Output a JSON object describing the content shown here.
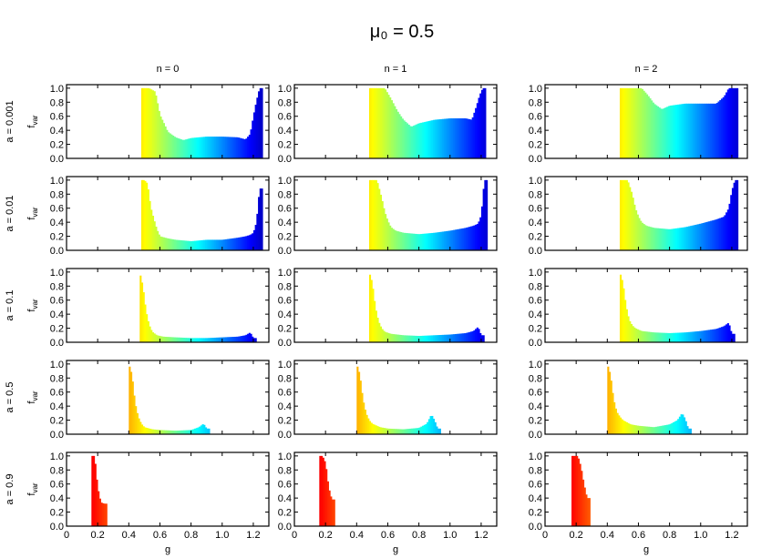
{
  "chart_data": {
    "type": "bar",
    "title": "μ₀ = 0.5",
    "xlabel": "g",
    "ylabel": "f_var",
    "xlim": [
      0,
      1.3
    ],
    "ylim": [
      0,
      1.05
    ],
    "x_ticks": [
      "0",
      "0.2",
      "0.4",
      "0.6",
      "0.8",
      "1.0",
      "1.2"
    ],
    "y_ticks": [
      "0.0",
      "0.2",
      "0.4",
      "0.6",
      "0.8",
      "1.0"
    ],
    "columns": [
      "n = 0",
      "n = 1",
      "n = 2"
    ],
    "rows": [
      "a = 0.001",
      "a = 0.01",
      "a = 0.1",
      "a = 0.5",
      "a = 0.9"
    ],
    "colormap": "jet",
    "panels": [
      {
        "row": 0,
        "col": 0,
        "x": [
          0.48,
          0.53,
          0.57,
          0.6,
          0.63,
          0.65,
          0.7,
          0.75,
          0.8,
          0.9,
          1.0,
          1.1,
          1.15,
          1.18,
          1.2,
          1.22,
          1.24
        ],
        "y": [
          1.0,
          1.0,
          0.95,
          0.62,
          0.48,
          0.38,
          0.3,
          0.26,
          0.29,
          0.31,
          0.31,
          0.3,
          0.27,
          0.35,
          0.6,
          0.82,
          1.0
        ]
      },
      {
        "row": 0,
        "col": 1,
        "x": [
          0.48,
          0.53,
          0.58,
          0.62,
          0.66,
          0.7,
          0.75,
          0.8,
          0.9,
          1.0,
          1.1,
          1.14,
          1.17,
          1.19,
          1.21
        ],
        "y": [
          1.0,
          1.0,
          1.0,
          0.85,
          0.68,
          0.55,
          0.45,
          0.5,
          0.55,
          0.57,
          0.57,
          0.55,
          0.75,
          0.9,
          1.0
        ]
      },
      {
        "row": 0,
        "col": 2,
        "x": [
          0.48,
          0.53,
          0.58,
          0.62,
          0.66,
          0.7,
          0.75,
          0.8,
          0.9,
          1.0,
          1.1,
          1.15,
          1.18,
          1.2,
          1.22
        ],
        "y": [
          1.0,
          1.0,
          1.0,
          1.0,
          0.9,
          0.78,
          0.7,
          0.75,
          0.78,
          0.78,
          0.78,
          0.88,
          1.0,
          1.0,
          1.0
        ]
      },
      {
        "row": 1,
        "col": 0,
        "x": [
          0.48,
          0.5,
          0.52,
          0.54,
          0.56,
          0.58,
          0.6,
          0.65,
          0.7,
          0.8,
          0.9,
          1.0,
          1.1,
          1.15,
          1.18,
          1.2,
          1.22,
          1.24
        ],
        "y": [
          1.0,
          1.0,
          0.95,
          0.62,
          0.45,
          0.3,
          0.2,
          0.17,
          0.15,
          0.13,
          0.15,
          0.15,
          0.18,
          0.2,
          0.22,
          0.25,
          0.4,
          0.88
        ]
      },
      {
        "row": 1,
        "col": 1,
        "x": [
          0.48,
          0.5,
          0.53,
          0.56,
          0.58,
          0.6,
          0.62,
          0.65,
          0.7,
          0.8,
          0.9,
          1.0,
          1.1,
          1.15,
          1.18,
          1.2,
          1.22
        ],
        "y": [
          1.0,
          1.0,
          1.0,
          0.75,
          0.55,
          0.42,
          0.33,
          0.28,
          0.25,
          0.23,
          0.25,
          0.28,
          0.32,
          0.35,
          0.38,
          0.5,
          1.0
        ]
      },
      {
        "row": 1,
        "col": 2,
        "x": [
          0.48,
          0.5,
          0.53,
          0.56,
          0.58,
          0.6,
          0.62,
          0.65,
          0.7,
          0.8,
          0.9,
          1.0,
          1.1,
          1.15,
          1.18,
          1.2,
          1.22
        ],
        "y": [
          1.0,
          1.0,
          1.0,
          0.8,
          0.6,
          0.48,
          0.4,
          0.35,
          0.32,
          0.3,
          0.33,
          0.38,
          0.44,
          0.48,
          0.6,
          0.85,
          1.0
        ]
      },
      {
        "row": 2,
        "col": 0,
        "x": [
          0.47,
          0.49,
          0.51,
          0.53,
          0.55,
          0.58,
          0.62,
          0.7,
          0.8,
          0.9,
          1.0,
          1.1,
          1.15,
          1.18,
          1.2
        ],
        "y": [
          1.0,
          0.8,
          0.45,
          0.25,
          0.15,
          0.1,
          0.08,
          0.07,
          0.06,
          0.06,
          0.07,
          0.08,
          0.1,
          0.14,
          0.06
        ]
      },
      {
        "row": 2,
        "col": 1,
        "x": [
          0.48,
          0.5,
          0.52,
          0.54,
          0.56,
          0.58,
          0.62,
          0.7,
          0.8,
          0.9,
          1.0,
          1.1,
          1.15,
          1.18,
          1.2
        ],
        "y": [
          1.0,
          0.85,
          0.5,
          0.3,
          0.2,
          0.15,
          0.12,
          0.1,
          0.09,
          0.1,
          0.11,
          0.13,
          0.16,
          0.22,
          0.1
        ]
      },
      {
        "row": 2,
        "col": 2,
        "x": [
          0.48,
          0.5,
          0.52,
          0.54,
          0.56,
          0.58,
          0.62,
          0.7,
          0.8,
          0.9,
          1.0,
          1.1,
          1.15,
          1.18,
          1.2
        ],
        "y": [
          1.0,
          0.85,
          0.52,
          0.32,
          0.24,
          0.2,
          0.16,
          0.14,
          0.13,
          0.14,
          0.16,
          0.19,
          0.23,
          0.28,
          0.12
        ]
      },
      {
        "row": 3,
        "col": 0,
        "x": [
          0.4,
          0.42,
          0.44,
          0.46,
          0.48,
          0.5,
          0.55,
          0.6,
          0.7,
          0.8,
          0.85,
          0.88,
          0.9
        ],
        "y": [
          1.0,
          0.85,
          0.45,
          0.25,
          0.15,
          0.1,
          0.07,
          0.06,
          0.05,
          0.06,
          0.1,
          0.15,
          0.08
        ]
      },
      {
        "row": 3,
        "col": 1,
        "x": [
          0.4,
          0.42,
          0.44,
          0.46,
          0.48,
          0.5,
          0.55,
          0.6,
          0.7,
          0.8,
          0.85,
          0.88,
          0.9,
          0.92
        ],
        "y": [
          1.0,
          0.85,
          0.5,
          0.3,
          0.2,
          0.15,
          0.1,
          0.08,
          0.07,
          0.09,
          0.15,
          0.28,
          0.2,
          0.08
        ]
      },
      {
        "row": 3,
        "col": 2,
        "x": [
          0.4,
          0.42,
          0.44,
          0.46,
          0.48,
          0.5,
          0.55,
          0.6,
          0.7,
          0.8,
          0.85,
          0.88,
          0.9,
          0.92
        ],
        "y": [
          1.0,
          0.85,
          0.5,
          0.32,
          0.25,
          0.2,
          0.14,
          0.12,
          0.1,
          0.14,
          0.2,
          0.3,
          0.22,
          0.08
        ]
      },
      {
        "row": 4,
        "col": 0,
        "x": [
          0.16,
          0.18,
          0.2,
          0.22,
          0.24
        ],
        "y": [
          1.0,
          1.0,
          0.55,
          0.34,
          0.32
        ]
      },
      {
        "row": 4,
        "col": 1,
        "x": [
          0.16,
          0.18,
          0.2,
          0.22,
          0.24
        ],
        "y": [
          1.0,
          1.0,
          0.9,
          0.55,
          0.38
        ]
      },
      {
        "row": 4,
        "col": 2,
        "x": [
          0.17,
          0.19,
          0.21,
          0.23,
          0.25,
          0.27
        ],
        "y": [
          1.0,
          1.0,
          1.0,
          0.85,
          0.6,
          0.4
        ]
      }
    ]
  }
}
